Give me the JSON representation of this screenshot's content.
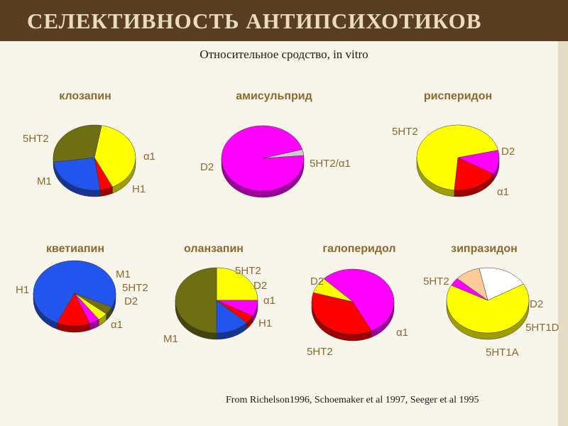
{
  "header": {
    "title": "СЕЛЕКТИВНОСТЬ АНТИПСИХОТИКОВ"
  },
  "subtitle": "Относительное сродство, in vitro",
  "footer": {
    "source": "From Richelson1996, Schoemaker et al 1997, Seeger et al 1995"
  },
  "colors": {
    "5HT2": "#ffff00",
    "α1": "#ff0000",
    "H1": "#2255ee",
    "M1": "#6e6e12",
    "D2": "#ff00ff",
    "5HT1A": "#ffffff",
    "5HT1D": "#ffcc99",
    "text": "#8a6a2e"
  },
  "chart_data": [
    {
      "type": "pie",
      "title": "клозапин",
      "slices": [
        {
          "label": "5HT2",
          "value": 40
        },
        {
          "label": "α1",
          "value": 5
        },
        {
          "label": "H1",
          "value": 25
        },
        {
          "label": "M1",
          "value": 30
        }
      ]
    },
    {
      "type": "pie",
      "title": "амисульприд",
      "slices": [
        {
          "label": "D2",
          "value": 97
        },
        {
          "label": "5HT2/α1",
          "value": 3
        }
      ]
    },
    {
      "type": "pie",
      "title": "рисперидон",
      "slices": [
        {
          "label": "5HT2",
          "value": 70
        },
        {
          "label": "D2",
          "value": 12
        },
        {
          "label": "α1",
          "value": 18
        }
      ]
    },
    {
      "type": "pie",
      "title": "кветиапин",
      "slices": [
        {
          "label": "H1",
          "value": 75
        },
        {
          "label": "M1",
          "value": 4
        },
        {
          "label": "5HT2",
          "value": 4
        },
        {
          "label": "D2",
          "value": 4
        },
        {
          "label": "α1",
          "value": 13
        }
      ]
    },
    {
      "type": "pie",
      "title": "оланзапин",
      "slices": [
        {
          "label": "5HT2",
          "value": 25
        },
        {
          "label": "D2",
          "value": 8
        },
        {
          "label": "α1",
          "value": 4
        },
        {
          "label": "H1",
          "value": 13
        },
        {
          "label": "M1",
          "value": 50
        }
      ]
    },
    {
      "type": "pie",
      "title": "галоперидол",
      "slices": [
        {
          "label": "D2",
          "value": 55
        },
        {
          "label": "α1",
          "value": 37
        },
        {
          "label": "5HT2",
          "value": 8
        }
      ]
    },
    {
      "type": "pie",
      "title": "зипразидон",
      "slices": [
        {
          "label": "5HT2",
          "value": 66
        },
        {
          "label": "D2",
          "value": 4
        },
        {
          "label": "5HT1D",
          "value": 10
        },
        {
          "label": "5HT1A",
          "value": 20
        }
      ]
    }
  ]
}
